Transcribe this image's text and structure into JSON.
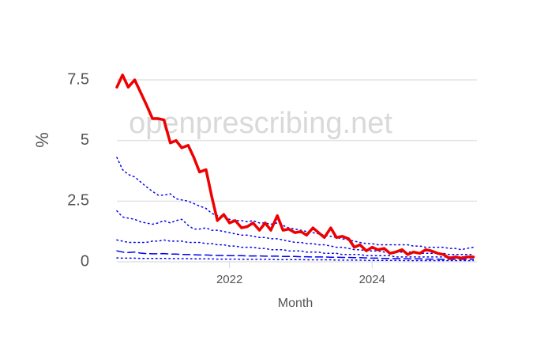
{
  "chart_data": {
    "type": "line",
    "watermark": "openprescribing.net",
    "x_label": "Month",
    "y_label": "%",
    "x": [
      2020.42,
      2020.5,
      2020.58,
      2020.67,
      2020.75,
      2020.83,
      2020.92,
      2021,
      2021.08,
      2021.17,
      2021.25,
      2021.33,
      2021.42,
      2021.5,
      2021.58,
      2021.67,
      2021.75,
      2021.83,
      2021.92,
      2022,
      2022.08,
      2022.17,
      2022.25,
      2022.33,
      2022.42,
      2022.5,
      2022.58,
      2022.67,
      2022.75,
      2022.83,
      2022.92,
      2023,
      2023.08,
      2023.17,
      2023.25,
      2023.33,
      2023.42,
      2023.5,
      2023.58,
      2023.67,
      2023.75,
      2023.83,
      2023.92,
      2024,
      2024.08,
      2024.17,
      2024.25,
      2024.33,
      2024.42,
      2024.5,
      2024.58,
      2024.67,
      2024.75,
      2024.83,
      2024.92,
      2025,
      2025.08,
      2025.17,
      2025.25,
      2025.33,
      2025.42
    ],
    "xlim": [
      2020.42,
      2025.47
    ],
    "xticks": [
      2022,
      2024
    ],
    "ylim": [
      0,
      7.9
    ],
    "yticks": [
      0,
      2.5,
      5,
      7.5
    ],
    "grid": true,
    "series": [
      {
        "color": "#0000ee",
        "dash": "dotted",
        "width": 1.5,
        "values": [
          4.3,
          3.8,
          3.6,
          3.5,
          3.3,
          3.1,
          2.9,
          2.75,
          2.75,
          2.8,
          2.6,
          2.55,
          2.5,
          2.4,
          2.3,
          2.2,
          2.0,
          1.9,
          1.85,
          1.75,
          1.7,
          1.7,
          1.65,
          1.7,
          1.6,
          1.6,
          1.55,
          1.6,
          1.5,
          1.4,
          1.35,
          1.3,
          1.25,
          1.2,
          1.15,
          1.1,
          1.05,
          1.0,
          0.95,
          0.9,
          0.85,
          0.8,
          0.75,
          0.75,
          0.7,
          0.7,
          0.7,
          0.7,
          0.7,
          0.7,
          0.65,
          0.65,
          0.6,
          0.6,
          0.6,
          0.6,
          0.55,
          0.55,
          0.5,
          0.55,
          0.6
        ]
      },
      {
        "color": "#0000ee",
        "dash": "dotted",
        "width": 1.5,
        "values": [
          2.1,
          1.85,
          1.8,
          1.75,
          1.65,
          1.6,
          1.55,
          1.6,
          1.7,
          1.6,
          1.7,
          1.75,
          1.5,
          1.35,
          1.35,
          1.4,
          1.3,
          1.3,
          1.25,
          1.2,
          1.15,
          1.1,
          1.1,
          1.05,
          1.0,
          1.0,
          0.95,
          0.95,
          0.9,
          0.85,
          0.8,
          0.8,
          0.75,
          0.75,
          0.7,
          0.7,
          0.65,
          0.6,
          0.6,
          0.55,
          0.5,
          0.5,
          0.45,
          0.45,
          0.45,
          0.4,
          0.4,
          0.4,
          0.4,
          0.4,
          0.4,
          0.35,
          0.35,
          0.35,
          0.35,
          0.35,
          0.3,
          0.3,
          0.3,
          0.3,
          0.3
        ]
      },
      {
        "color": "#0000ee",
        "dash": "dotted",
        "width": 1.5,
        "values": [
          0.9,
          0.85,
          0.8,
          0.8,
          0.8,
          0.8,
          0.85,
          0.85,
          0.9,
          0.85,
          0.85,
          0.85,
          0.8,
          0.8,
          0.8,
          0.75,
          0.75,
          0.7,
          0.7,
          0.65,
          0.65,
          0.6,
          0.6,
          0.6,
          0.55,
          0.55,
          0.5,
          0.5,
          0.5,
          0.45,
          0.45,
          0.45,
          0.4,
          0.4,
          0.4,
          0.35,
          0.35,
          0.35,
          0.3,
          0.3,
          0.3,
          0.3,
          0.25,
          0.25,
          0.25,
          0.25,
          0.25,
          0.2,
          0.2,
          0.2,
          0.2,
          0.2,
          0.2,
          0.2,
          0.2,
          0.2,
          0.2,
          0.2,
          0.2,
          0.2,
          0.2
        ]
      },
      {
        "color": "#0000ee",
        "dash": "dashed",
        "width": 1.5,
        "values": [
          0.45,
          0.4,
          0.38,
          0.4,
          0.36,
          0.34,
          0.33,
          0.33,
          0.34,
          0.32,
          0.32,
          0.3,
          0.3,
          0.29,
          0.28,
          0.28,
          0.27,
          0.26,
          0.26,
          0.25,
          0.25,
          0.25,
          0.24,
          0.24,
          0.24,
          0.23,
          0.23,
          0.23,
          0.22,
          0.22,
          0.22,
          0.21,
          0.21,
          0.2,
          0.2,
          0.2,
          0.19,
          0.19,
          0.18,
          0.18,
          0.17,
          0.17,
          0.16,
          0.15,
          0.15,
          0.14,
          0.14,
          0.13,
          0.13,
          0.12,
          0.12,
          0.12,
          0.11,
          0.11,
          0.11,
          0.1,
          0.1,
          0.1,
          0.1,
          0.1,
          0.1
        ]
      },
      {
        "color": "#0000ee",
        "dash": "dotted",
        "width": 1.5,
        "values": [
          0.16,
          0.15,
          0.15,
          0.15,
          0.14,
          0.14,
          0.14,
          0.14,
          0.14,
          0.13,
          0.13,
          0.13,
          0.13,
          0.12,
          0.12,
          0.12,
          0.12,
          0.11,
          0.11,
          0.11,
          0.11,
          0.1,
          0.1,
          0.1,
          0.1,
          0.1,
          0.1,
          0.09,
          0.09,
          0.09,
          0.09,
          0.09,
          0.08,
          0.08,
          0.08,
          0.08,
          0.08,
          0.07,
          0.07,
          0.07,
          0.07,
          0.07,
          0.06,
          0.06,
          0.06,
          0.06,
          0.06,
          0.06,
          0.05,
          0.05,
          0.05,
          0.05,
          0.05,
          0.05,
          0.05,
          0.05,
          0.05,
          0.05,
          0.05,
          0.05,
          0.05
        ]
      },
      {
        "color": "#ee0000",
        "dash": "solid",
        "width": 3.5,
        "values": [
          7.2,
          7.7,
          7.2,
          7.5,
          7.0,
          6.5,
          5.9,
          5.9,
          5.85,
          4.9,
          5.0,
          4.7,
          4.8,
          4.3,
          3.7,
          3.8,
          2.7,
          1.7,
          1.95,
          1.6,
          1.7,
          1.4,
          1.45,
          1.6,
          1.3,
          1.6,
          1.3,
          1.9,
          1.3,
          1.35,
          1.2,
          1.25,
          1.1,
          1.4,
          1.2,
          1.0,
          1.4,
          1.0,
          1.05,
          0.95,
          0.6,
          0.7,
          0.45,
          0.6,
          0.5,
          0.55,
          0.35,
          0.4,
          0.5,
          0.3,
          0.4,
          0.35,
          0.5,
          0.45,
          0.35,
          0.3,
          0.15,
          0.2,
          0.15,
          0.2,
          0.2
        ]
      }
    ]
  }
}
